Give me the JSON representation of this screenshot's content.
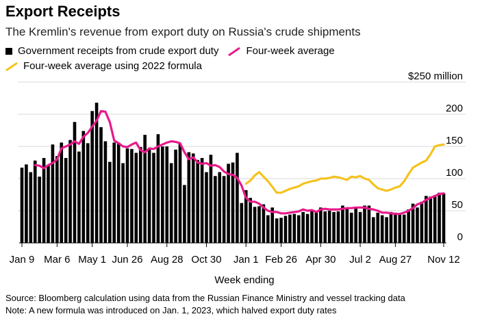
{
  "title": "Export Receipts",
  "subtitle": "The Kremlin's revenue from export duty on Russia's crude shipments",
  "legend": [
    {
      "label": "Government receipts from crude export duty",
      "color": "#000000",
      "kind": "box"
    },
    {
      "label": "Four-week average",
      "color": "#e8198a",
      "kind": "line"
    },
    {
      "label": "Four-week average using 2022 formula",
      "color": "#f5c21c",
      "kind": "line"
    }
  ],
  "footer": {
    "source": "Source: Bloomberg calculation using data from the Russian Finance Ministry and vessel tracking data",
    "note": "Note: A new formula was introduced on Jan. 1, 2023, which halved export duty rates"
  },
  "chart_data": {
    "type": "bar",
    "xlabel": "Week ending",
    "ylabel": "",
    "ylim": [
      0,
      250
    ],
    "y_ticks": [
      {
        "value": 250,
        "label": "$250 million"
      },
      {
        "value": 200,
        "label": "200"
      },
      {
        "value": 150,
        "label": "150"
      },
      {
        "value": 100,
        "label": "100"
      },
      {
        "value": 50,
        "label": "50"
      },
      {
        "value": 0,
        "label": "0"
      }
    ],
    "x_tick_labels": [
      {
        "index": 0,
        "label": "Jan 9"
      },
      {
        "index": 8,
        "label": "Mar 6"
      },
      {
        "index": 16,
        "label": "May 1"
      },
      {
        "index": 24,
        "label": "Jun 26"
      },
      {
        "index": 33,
        "label": "Aug 28"
      },
      {
        "index": 42,
        "label": "Oct 30"
      },
      {
        "index": 51,
        "label": "Jan 1"
      },
      {
        "index": 59,
        "label": "Feb 26"
      },
      {
        "index": 68,
        "label": "Apr 30"
      },
      {
        "index": 77,
        "label": "Jul 2"
      },
      {
        "index": 85,
        "label": "Aug 27"
      },
      {
        "index": 96,
        "label": "Nov 12"
      }
    ],
    "colors": {
      "bars": "#000000",
      "avg": "#e8198a",
      "avg2022": "#f5c21c"
    },
    "series": [
      {
        "name": "Government receipts from crude export duty",
        "values": [
          117,
          122,
          110,
          128,
          103,
          132,
          120,
          153,
          135,
          156,
          132,
          160,
          188,
          142,
          174,
          155,
          205,
          218,
          180,
          158,
          126,
          156,
          156,
          124,
          147,
          146,
          140,
          149,
          168,
          147,
          140,
          169,
          150,
          150,
          124,
          145,
          154,
          90,
          141,
          139,
          129,
          132,
          110,
          137,
          104,
          110,
          104,
          123,
          125,
          140,
          62,
          82,
          70,
          56,
          57,
          60,
          43,
          55,
          38,
          39,
          42,
          44,
          45,
          43,
          48,
          45,
          50,
          48,
          55,
          49,
          50,
          48,
          49,
          58,
          54,
          47,
          54,
          48,
          58,
          58,
          40,
          47,
          43,
          40,
          48,
          47,
          45,
          44,
          52,
          61,
          55,
          64,
          73,
          72,
          72,
          78,
          77
        ]
      },
      {
        "name": "Four-week average",
        "values": [
          null,
          null,
          null,
          121,
          120,
          116,
          121,
          124,
          130,
          147,
          150,
          153,
          158,
          154,
          165,
          171,
          181,
          190,
          205,
          204,
          188,
          159,
          155,
          150,
          149,
          153,
          156,
          144,
          141,
          147,
          146,
          150,
          153,
          156,
          158,
          157,
          155,
          141,
          130,
          133,
          125,
          123,
          124,
          120,
          121,
          118,
          111,
          107,
          106,
          101,
          89,
          70,
          64,
          64,
          61,
          55,
          50,
          48,
          48,
          46,
          46,
          47,
          48,
          49,
          52,
          50,
          51,
          48,
          52,
          53,
          52,
          52,
          52,
          53,
          54,
          54,
          55,
          55,
          55,
          53,
          52,
          50,
          47,
          47,
          46,
          45,
          45,
          47,
          50,
          54,
          60,
          62,
          67,
          70,
          73,
          76,
          77
        ]
      },
      {
        "name": "Four-week average using 2022 formula",
        "values": [
          null,
          null,
          null,
          null,
          null,
          null,
          null,
          null,
          null,
          null,
          null,
          null,
          null,
          null,
          null,
          null,
          null,
          null,
          null,
          null,
          null,
          null,
          null,
          null,
          null,
          null,
          null,
          null,
          null,
          null,
          null,
          null,
          null,
          null,
          null,
          null,
          null,
          null,
          null,
          null,
          null,
          null,
          null,
          null,
          null,
          null,
          null,
          null,
          null,
          null,
          null,
          92,
          97,
          105,
          110,
          103,
          96,
          87,
          78,
          78,
          81,
          84,
          86,
          88,
          92,
          94,
          96,
          97,
          100,
          100,
          101,
          103,
          102,
          100,
          98,
          103,
          102,
          104,
          100,
          98,
          91,
          85,
          83,
          81,
          83,
          86,
          88,
          96,
          107,
          117,
          121,
          125,
          128,
          138,
          150,
          152,
          153
        ]
      }
    ]
  }
}
